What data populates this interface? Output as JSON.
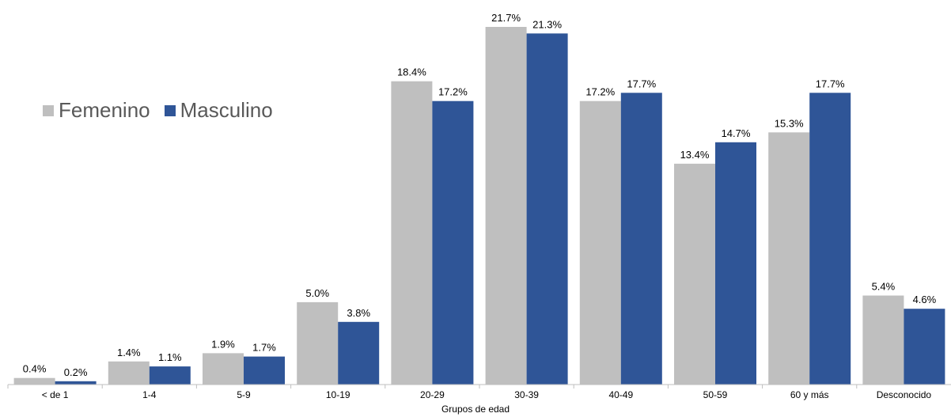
{
  "chart_data": {
    "type": "bar",
    "categories": [
      "< de 1",
      "1-4",
      "5-9",
      "10-19",
      "20-29",
      "30-39",
      "40-49",
      "50-59",
      "60 y más",
      "Desconocido"
    ],
    "series": [
      {
        "name": "Femenino",
        "color": "#bfbfbf",
        "values": [
          0.4,
          1.4,
          1.9,
          5.0,
          18.4,
          21.7,
          17.2,
          13.4,
          15.3,
          5.4
        ],
        "labels": [
          "0.4%",
          "1.4%",
          "1.9%",
          "5.0%",
          "18.4%",
          "21.7%",
          "17.2%",
          "13.4%",
          "15.3%",
          "5.4%"
        ]
      },
      {
        "name": "Masculino",
        "color": "#2f5597",
        "values": [
          0.2,
          1.1,
          1.7,
          3.8,
          17.2,
          21.3,
          17.7,
          14.7,
          17.7,
          4.6
        ],
        "labels": [
          "0.2%",
          "1.1%",
          "1.7%",
          "3.8%",
          "17.2%",
          "21.3%",
          "17.7%",
          "14.7%",
          "17.7%",
          "4.6%"
        ]
      }
    ],
    "xlabel": "Grupos de edad",
    "ylabel": "",
    "ylim": [
      0,
      22
    ],
    "grid": false,
    "legend": "top-left"
  }
}
